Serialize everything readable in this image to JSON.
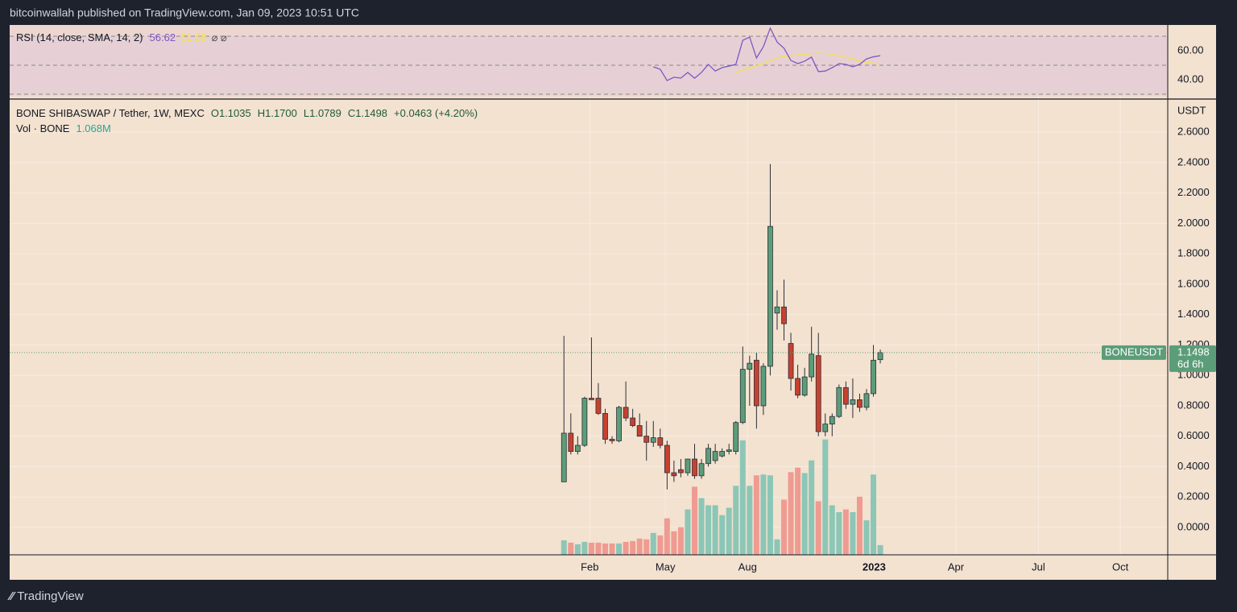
{
  "header": "bitcoinwallah published on TradingView.com, Jan 09, 2023 10:51 UTC",
  "footer": "TradingView",
  "chart_data": [
    {
      "type": "candlestick",
      "title": "BONE SHIBASWAP / Tether, 1W, MEXC",
      "ohlc_legend": [
        "O1.1035",
        "H1.1700",
        "L1.0789",
        "C1.1498"
      ],
      "change": "+0.0463 (+4.20%)",
      "volume_title": "Vol · BONE",
      "volume_last_label": "1.068M",
      "symbol_label": "BONEUSDT",
      "countdown": "6d 6h",
      "y_unit": "USDT",
      "up_color": "#5b9d78",
      "down_color": "#c8412f",
      "up_volume_color": "#8cc6b6",
      "down_volume_color": "#ef9b92",
      "x": [
        0,
        1,
        2,
        3,
        4,
        5,
        6,
        7,
        8,
        9,
        10,
        11,
        12,
        13,
        14,
        15,
        16,
        17,
        18,
        19,
        20,
        21,
        22,
        23,
        24,
        25,
        26,
        27,
        28,
        29,
        30,
        31,
        32,
        33,
        34,
        35,
        36,
        37,
        38,
        39,
        40,
        41,
        42,
        43,
        44,
        45,
        46
      ],
      "open": [
        0.3,
        0.62,
        0.5,
        0.54,
        0.85,
        0.85,
        0.75,
        0.58,
        0.57,
        0.79,
        0.72,
        0.67,
        0.6,
        0.56,
        0.59,
        0.54,
        0.36,
        0.38,
        0.36,
        0.45,
        0.34,
        0.42,
        0.44,
        0.47,
        0.5,
        0.5,
        0.69,
        1.04,
        1.1,
        0.8,
        1.06,
        1.41,
        1.45,
        1.21,
        0.98,
        0.87,
        0.99,
        1.13,
        0.63,
        0.68,
        0.73,
        0.92,
        0.81,
        0.84,
        0.79,
        0.88,
        1.1035
      ],
      "high": [
        1.26,
        0.75,
        0.6,
        0.86,
        1.25,
        0.95,
        0.78,
        0.6,
        0.8,
        0.96,
        0.78,
        0.75,
        0.7,
        0.7,
        0.65,
        0.57,
        0.44,
        0.45,
        0.45,
        0.55,
        0.45,
        0.55,
        0.55,
        0.52,
        0.55,
        0.7,
        1.19,
        1.13,
        1.15,
        1.08,
        2.39,
        1.56,
        1.63,
        1.28,
        1.07,
        1.05,
        1.32,
        1.28,
        0.75,
        0.75,
        0.94,
        0.96,
        0.98,
        0.88,
        0.91,
        1.2,
        1.17
      ],
      "low": [
        0.3,
        0.48,
        0.48,
        0.53,
        0.84,
        0.74,
        0.55,
        0.55,
        0.56,
        0.7,
        0.66,
        0.6,
        0.44,
        0.53,
        0.52,
        0.25,
        0.3,
        0.33,
        0.34,
        0.32,
        0.32,
        0.4,
        0.42,
        0.46,
        0.48,
        0.48,
        0.68,
        0.8,
        0.65,
        0.74,
        1.0,
        1.3,
        1.23,
        0.9,
        0.85,
        0.86,
        0.96,
        0.6,
        0.6,
        0.6,
        0.72,
        0.78,
        0.72,
        0.76,
        0.77,
        0.86,
        1.0789
      ],
      "close": [
        0.62,
        0.5,
        0.54,
        0.85,
        0.84,
        0.75,
        0.58,
        0.57,
        0.79,
        0.72,
        0.67,
        0.6,
        0.56,
        0.59,
        0.54,
        0.36,
        0.34,
        0.36,
        0.45,
        0.34,
        0.42,
        0.52,
        0.5,
        0.5,
        0.51,
        0.69,
        1.04,
        1.08,
        0.8,
        1.06,
        1.98,
        1.45,
        1.34,
        0.98,
        0.87,
        0.99,
        1.14,
        0.63,
        0.68,
        0.73,
        0.92,
        0.81,
        0.84,
        0.79,
        0.88,
        1.1,
        1.1498
      ],
      "volume": [
        1600000,
        1340000,
        1160000,
        1430000,
        1340000,
        1340000,
        1250000,
        1250000,
        1250000,
        1430000,
        1520000,
        1790000,
        1700000,
        2410000,
        2140000,
        4020000,
        2590000,
        3040000,
        5000000,
        7500000,
        6250000,
        5450000,
        5450000,
        4370000,
        5180000,
        7600000,
        12600000,
        7600000,
        8750000,
        8840000,
        8750000,
        1700000,
        6070000,
        9100000,
        9600000,
        9000000,
        10400000,
        5900000,
        12700000,
        5450000,
        4700000,
        5000000,
        4700000,
        6400000,
        3800000,
        8840000,
        1068000
      ],
      "volume_ylim": [
        0,
        50000000
      ],
      "xlim": [
        -80.6,
        87.8
      ],
      "xticks": [
        {
          "value": 3.75,
          "label": "Feb"
        },
        {
          "value": 14.75,
          "label": "May"
        },
        {
          "value": 26.7,
          "label": "Aug"
        },
        {
          "value": 45.1,
          "label": "2023"
        },
        {
          "value": 57.0,
          "label": "Apr"
        },
        {
          "value": 69.0,
          "label": "Jul"
        },
        {
          "value": 80.9,
          "label": "Oct"
        }
      ],
      "ylim": [
        -0.18,
        2.807
      ],
      "yticks": [
        {
          "value": 0,
          "label": "0.0000"
        },
        {
          "value": 0.2,
          "label": "0.2000"
        },
        {
          "value": 0.4,
          "label": "0.4000"
        },
        {
          "value": 0.6,
          "label": "0.6000"
        },
        {
          "value": 0.8,
          "label": "0.8000"
        },
        {
          "value": 1.0,
          "label": "1.0000"
        },
        {
          "value": 1.2,
          "label": "1.2000"
        },
        {
          "value": 1.4,
          "label": "1.4000"
        },
        {
          "value": 1.6,
          "label": "1.6000"
        },
        {
          "value": 1.8,
          "label": "1.8000"
        },
        {
          "value": 2.0,
          "label": "2.0000"
        },
        {
          "value": 2.2,
          "label": "2.2000"
        },
        {
          "value": 2.4,
          "label": "2.4000"
        },
        {
          "value": 2.6,
          "label": "2.6000"
        }
      ],
      "grid": true
    },
    {
      "type": "line",
      "title": "RSI (14, close, SMA, 14, 2)",
      "last_labels": [
        "56.62",
        "51.08"
      ],
      "symbols": "⌀ ⌀",
      "series": [
        {
          "color": "#7e57c2",
          "values": [
            null,
            null,
            null,
            null,
            null,
            null,
            null,
            null,
            null,
            null,
            null,
            null,
            null,
            48.9,
            47.2,
            39.4,
            41.7,
            41.1,
            45,
            41,
            45,
            50.6,
            46,
            48.3,
            49.4,
            50.6,
            67.2,
            69.4,
            55,
            62.8,
            75.6,
            66,
            61.7,
            53.3,
            51.1,
            52.8,
            55.6,
            45.6,
            46,
            48.3,
            51.1,
            50.6,
            48.9,
            50.6,
            54.4,
            55.8,
            56.62
          ]
        },
        {
          "color": "#f5e04a",
          "values": [
            null,
            null,
            null,
            null,
            null,
            null,
            null,
            null,
            null,
            null,
            null,
            null,
            null,
            null,
            null,
            null,
            null,
            null,
            null,
            null,
            null,
            null,
            null,
            null,
            null,
            45,
            46.5,
            48,
            49.5,
            51,
            53,
            55,
            56,
            56.5,
            57,
            57.5,
            58,
            58.3,
            58.2,
            57.5,
            56.5,
            55.5,
            54.5,
            53,
            52,
            51.3,
            51.08
          ]
        }
      ],
      "levels": [
        70,
        50,
        30
      ],
      "band": [
        30,
        70
      ],
      "ylim": [
        28.3,
        77.8
      ],
      "yticks": [
        {
          "value": 60,
          "label": "60.00"
        },
        {
          "value": 40,
          "label": "40.00"
        }
      ]
    }
  ]
}
